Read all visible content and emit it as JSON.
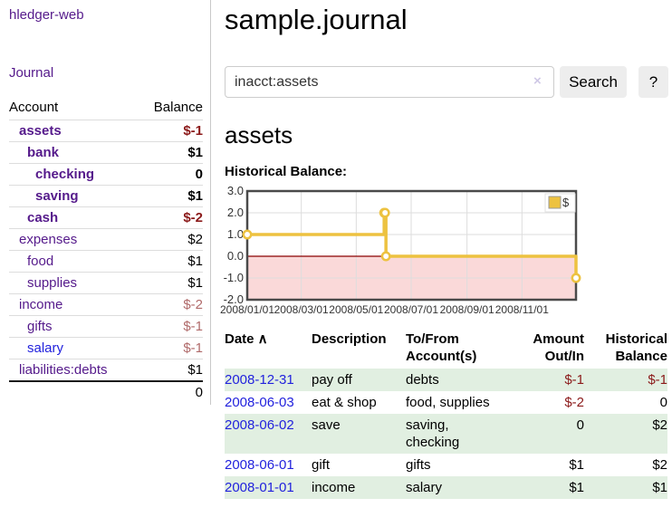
{
  "app": {
    "title": "hledger-web",
    "nav_journal": "Journal"
  },
  "sidebar": {
    "table": {
      "col_account": "Account",
      "col_balance": "Balance"
    },
    "accounts": [
      {
        "name": "assets",
        "indent": 1,
        "bold": true,
        "balance": "$-1",
        "negative": true
      },
      {
        "name": "bank",
        "indent": 2,
        "bold": true,
        "balance": "$1",
        "negative": false
      },
      {
        "name": "checking",
        "indent": 3,
        "bold": true,
        "balance": "0",
        "negative": false
      },
      {
        "name": "saving",
        "indent": 3,
        "bold": true,
        "balance": "$1",
        "negative": false
      },
      {
        "name": "cash",
        "indent": 2,
        "bold": true,
        "balance": "$-2",
        "negative": true
      },
      {
        "name": "expenses",
        "indent": 1,
        "bold": false,
        "balance": "$2",
        "negative": false
      },
      {
        "name": "food",
        "indent": 2,
        "bold": false,
        "balance": "$1",
        "negative": false
      },
      {
        "name": "supplies",
        "indent": 2,
        "bold": false,
        "balance": "$1",
        "negative": false
      },
      {
        "name": "income",
        "indent": 1,
        "bold": false,
        "balance": "$-2",
        "negative": true
      },
      {
        "name": "gifts",
        "indent": 2,
        "bold": false,
        "balance": "$-1",
        "negative": true
      },
      {
        "name": "salary",
        "indent": 2,
        "bold": false,
        "balance": "$-1",
        "negative": true,
        "unvisited": true
      },
      {
        "name": "liabilities:debts",
        "indent": 1,
        "bold": false,
        "balance": "$1",
        "negative": false
      }
    ],
    "total": "0"
  },
  "header": {
    "title": "sample.journal"
  },
  "search": {
    "value": "inacct:assets",
    "clear_label": "×",
    "button_label": "Search",
    "help_label": "?"
  },
  "account_page": {
    "heading": "assets",
    "chart_label": "Historical Balance:"
  },
  "chart_data": {
    "type": "line",
    "step": true,
    "title": "Historical Balance:",
    "series": [
      {
        "name": "$",
        "color": "#EDC240",
        "points": [
          [
            "2008-01-01",
            1
          ],
          [
            "2008-06-01",
            2
          ],
          [
            "2008-06-02",
            2
          ],
          [
            "2008-06-03",
            0
          ],
          [
            "2008-12-31",
            -1
          ]
        ]
      }
    ],
    "x_range": [
      "2008-01-01",
      "2008-12-31"
    ],
    "x_tick_labels": [
      "2008/01/01",
      "2008/03/01",
      "2008/05/01",
      "2008/07/01",
      "2008/09/01",
      "2008/11/01"
    ],
    "y_ticks": [
      "3.0",
      "2.0",
      "1.0",
      "0.0",
      "-1.0",
      "-2.0"
    ],
    "ylim": [
      -2,
      3
    ],
    "grid": true,
    "legend_position": "top-right",
    "negative_region_color": "#FAD9D9",
    "zero_line_color": "#8B0000"
  },
  "register": {
    "columns": [
      "Date",
      "Description",
      "To/From Account(s)",
      "Amount Out/In",
      "Historical Balance"
    ],
    "sort_indicator": "∧",
    "rows": [
      {
        "date": "2008-12-31",
        "description": "pay off",
        "accounts": "debts",
        "amount": "$-1",
        "amount_negative": true,
        "balance": "$-1",
        "balance_negative": true
      },
      {
        "date": "2008-06-03",
        "description": "eat & shop",
        "accounts": "food, supplies",
        "amount": "$-2",
        "amount_negative": true,
        "balance": "0",
        "balance_negative": false
      },
      {
        "date": "2008-06-02",
        "description": "save",
        "accounts": "saving, checking",
        "amount": "0",
        "amount_negative": false,
        "balance": "$2",
        "balance_negative": false
      },
      {
        "date": "2008-06-01",
        "description": "gift",
        "accounts": "gifts",
        "amount": "$1",
        "amount_negative": false,
        "balance": "$2",
        "balance_negative": false
      },
      {
        "date": "2008-01-01",
        "description": "income",
        "accounts": "salary",
        "amount": "$1",
        "amount_negative": false,
        "balance": "$1",
        "balance_negative": false
      }
    ]
  },
  "colors": {
    "link_purple": "#551A8B",
    "link_blue": "#2222DD",
    "negative_red": "#8B1A1A",
    "negative_soft_red": "#B06A6A",
    "row_green": "#E1EFE1",
    "series_gold": "#EDC240"
  }
}
